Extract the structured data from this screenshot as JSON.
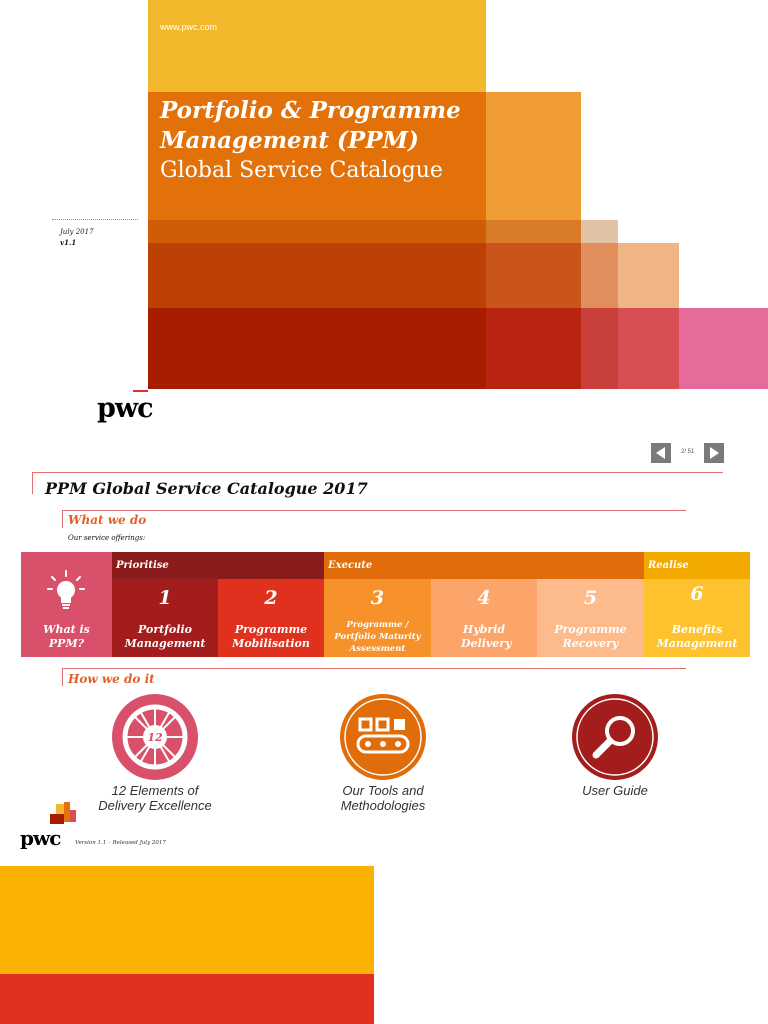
{
  "cover": {
    "url": "www.pwc.com",
    "title": "Portfolio & Programme Management (PPM)",
    "subtitle": "Global Service Catalogue",
    "date": "July 2017",
    "version": "v1.1",
    "logo_text": "pwc"
  },
  "page2": {
    "page_indicator": "2/ 51",
    "title": "PPM Global Service Catalogue 2017",
    "what_we_do": "What we do",
    "offerings_note": "Our service offerings:",
    "phases": [
      {
        "label": "Prioritise",
        "color": "#8c1c1c"
      },
      {
        "label": "Execute",
        "color": "#e06c0a"
      },
      {
        "label": "Realise",
        "color": "#f2a900"
      }
    ],
    "tiles": [
      {
        "number": "",
        "label": "What is PPM?",
        "color": "#d9506a",
        "icon": "lightbulb-icon"
      },
      {
        "number": "1",
        "label": "Portfolio Management",
        "color": "#a31d1d"
      },
      {
        "number": "2",
        "label": "Programme Mobilisation",
        "color": "#e0301e"
      },
      {
        "number": "3",
        "label": "Programme / Portfolio Maturity Assessment",
        "color": "#f7922a"
      },
      {
        "number": "4",
        "label": "Hybrid Delivery",
        "color": "#fba56b"
      },
      {
        "number": "5",
        "label": "Programme Recovery",
        "color": "#fdbb8c"
      },
      {
        "number": "6",
        "label": "Benefits Management",
        "color": "#fdc22d"
      }
    ],
    "how_we_do_it": "How we do it",
    "how_items": [
      {
        "label": "12 Elements of Delivery Excellence",
        "icon": "wheel-12-icon",
        "color": "#d9506a",
        "badge": "12"
      },
      {
        "label": "Our Tools and Methodologies",
        "icon": "conveyor-icon",
        "color": "#e06c0a"
      },
      {
        "label": "User Guide",
        "icon": "magnifier-icon",
        "color": "#a31d1d"
      }
    ],
    "footer_logo_text": "pwc",
    "footer_version": "Version 1.1 – Released July 2017"
  },
  "colors": {
    "yellow": "#f2b72a",
    "orange": "#e0700f",
    "dark_red": "#a81c00",
    "rose": "#e56b9b",
    "pwc_orange": "#e0602c"
  }
}
